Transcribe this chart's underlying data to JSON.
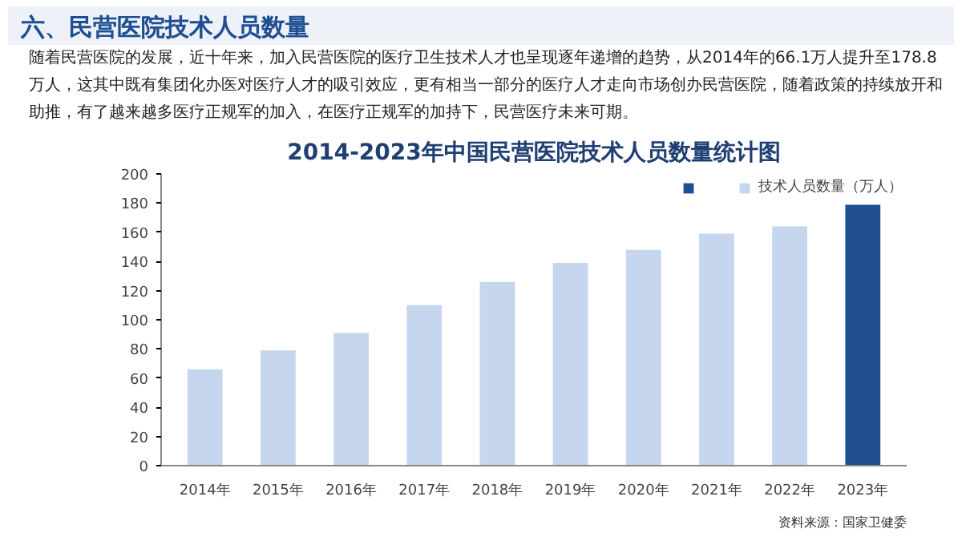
{
  "chart_data": {
    "type": "bar",
    "title": "2014-2023年中国民营医院技术人员数量统计图",
    "categories": [
      "2014年",
      "2015年",
      "2016年",
      "2017年",
      "2018年",
      "2019年",
      "2020年",
      "2021年",
      "2022年",
      "2023年"
    ],
    "series": [
      {
        "name": "技术人员数量（万人）",
        "colors": [
          "#c5d6ee",
          "#c5d6ee",
          "#c5d6ee",
          "#c5d6ee",
          "#c5d6ee",
          "#c5d6ee",
          "#c5d6ee",
          "#c5d6ee",
          "#c5d6ee",
          "#1f4e91"
        ],
        "values": [
          66.1,
          79,
          91,
          110,
          126,
          139,
          148,
          159,
          164,
          178.8
        ]
      }
    ],
    "ylim": [
      0,
      200
    ],
    "yticks": [
      0,
      20,
      40,
      60,
      80,
      100,
      120,
      140,
      160,
      180,
      200
    ],
    "grid": false,
    "legend": "top right",
    "annotations": [
      "六、民营医院技术人员数量",
      "随着民营医院的发展，近十年来，加入民营医院的医疗卫生技术人才也呈现逐年递增的趋势，从2014年的66.1万人提升至178.8万人，这其中既有集团化办医对医疗人才的吸引效应，更有相当一部分的医疗人才走向市场创办民营医院，随着政策的持续放开和助推，有了越来越多医疗正规军的加入，在医疗正规军的加持下，民营医疗未来可期。",
      "资料来源：国家卫健委"
    ]
  }
}
